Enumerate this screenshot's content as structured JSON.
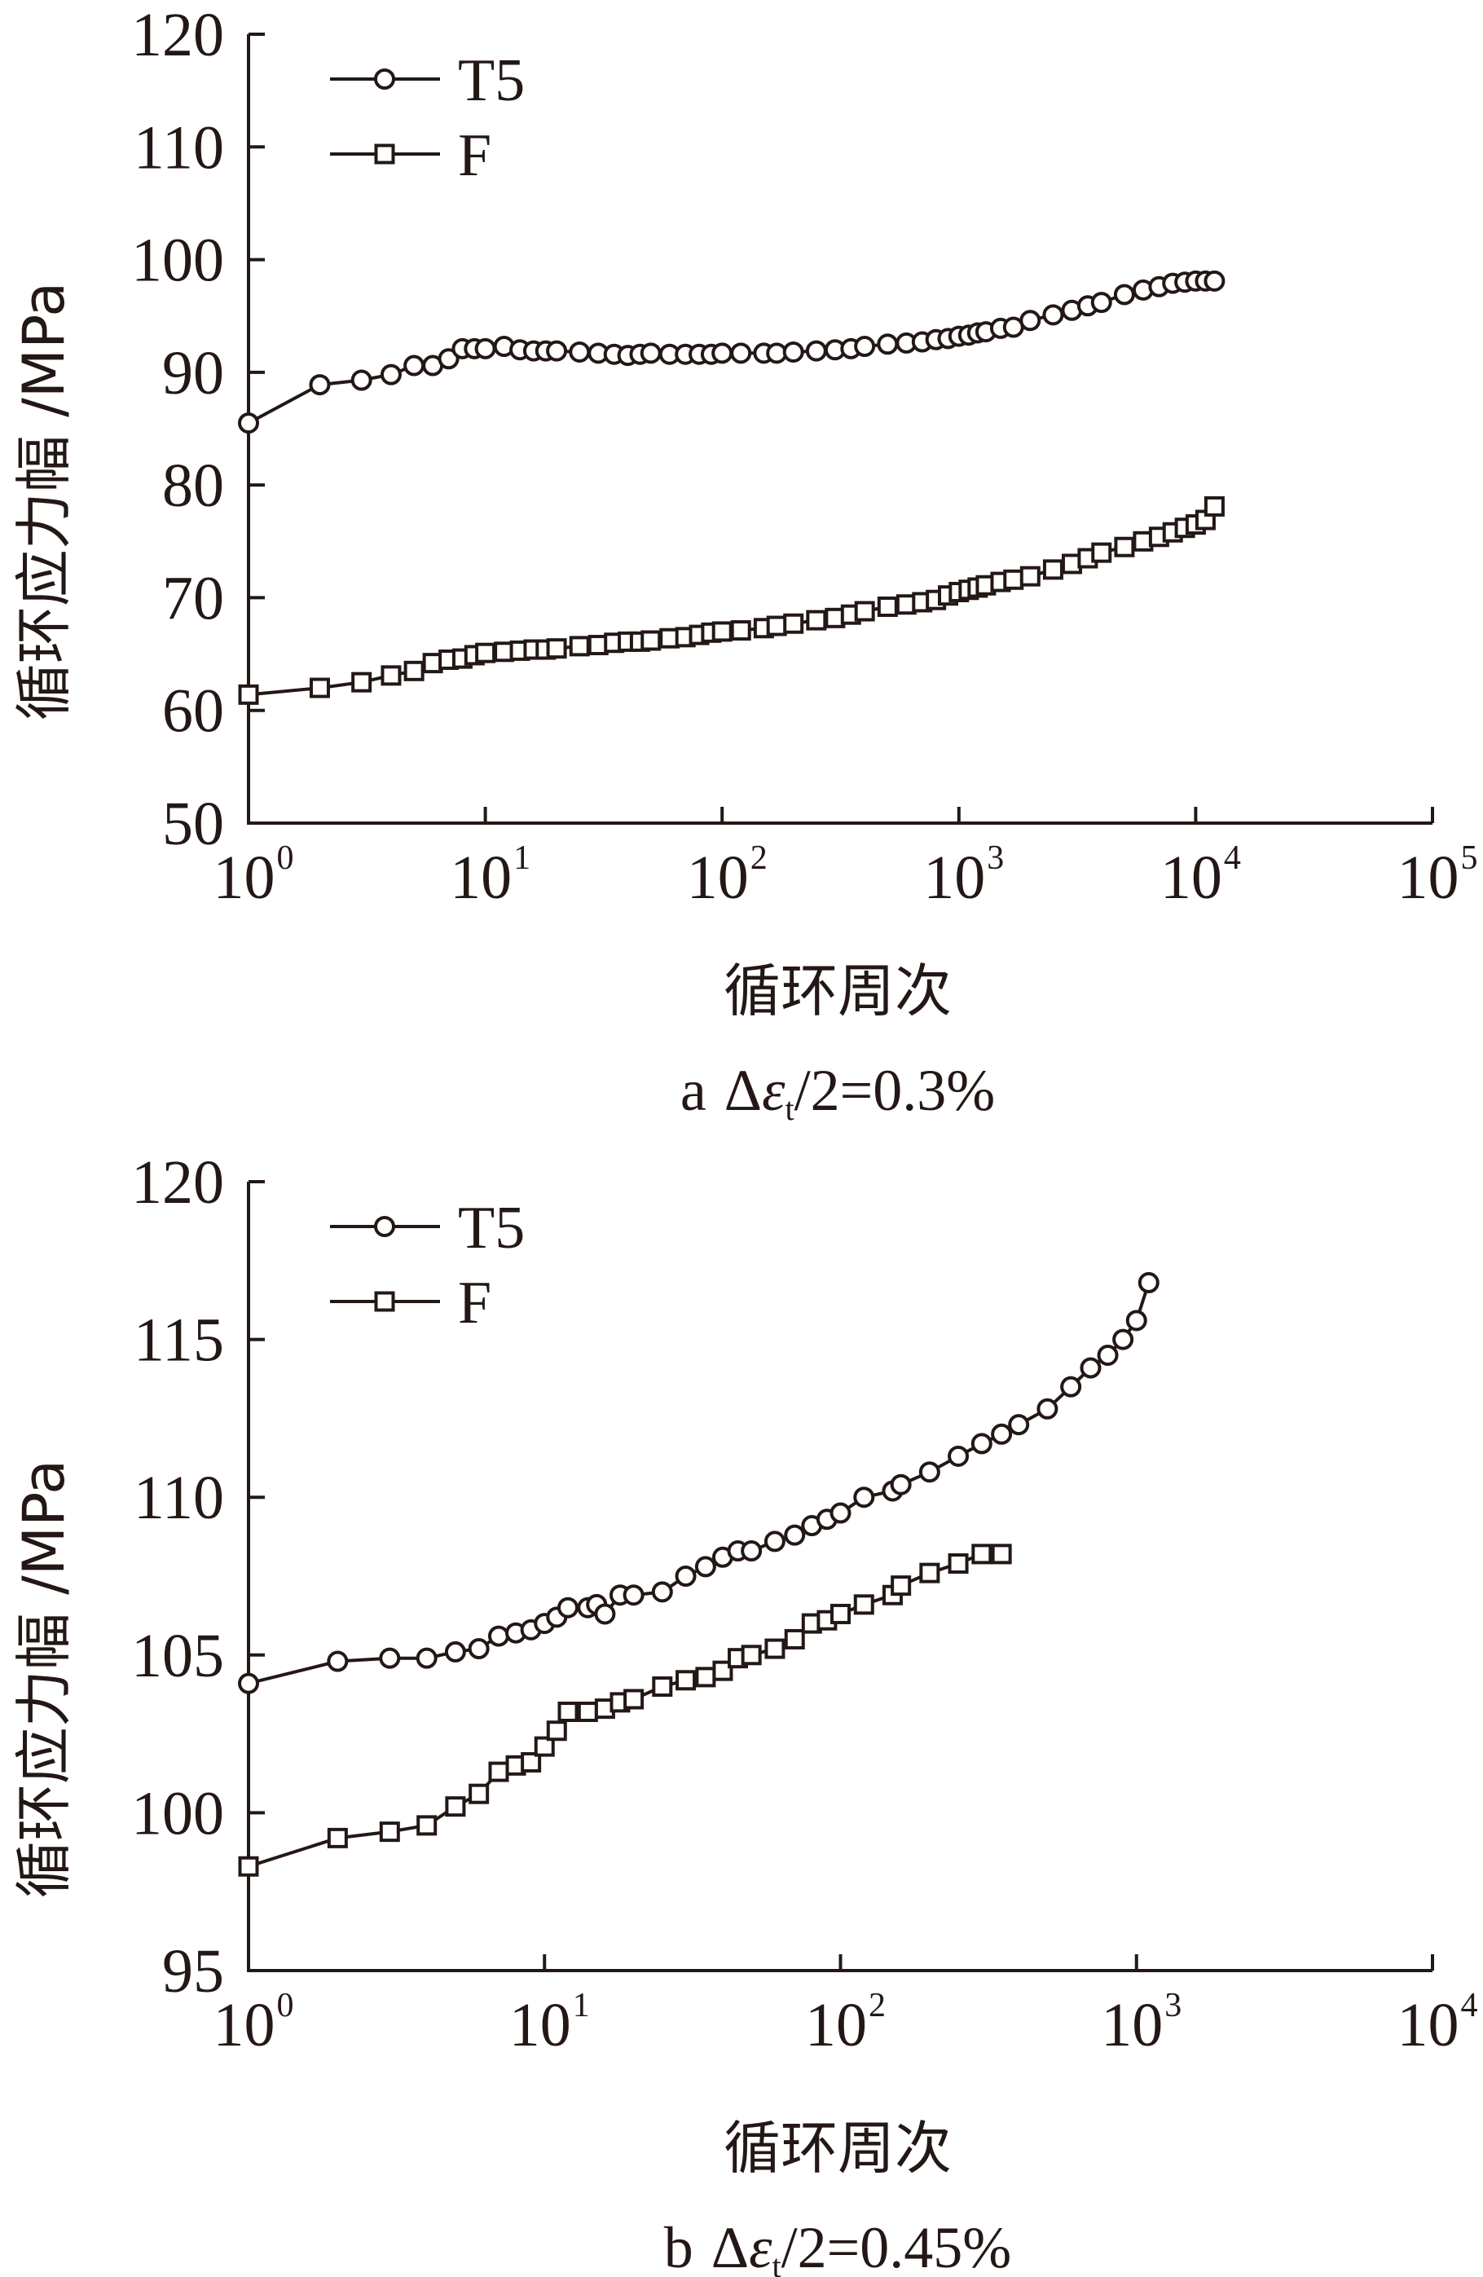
{
  "chart_data": [
    {
      "type": "line",
      "caption": {
        "prefix": "a",
        "delta": "Δ",
        "eps": "ε",
        "sub": "t",
        "rest": "/2=0.3%"
      },
      "xlabel": "循环周次",
      "ylabel": "循环应力幅 /MPa",
      "xscale": "log",
      "xlim": [
        1,
        100000
      ],
      "ylim": [
        50,
        120
      ],
      "yticks": [
        50,
        60,
        70,
        80,
        90,
        100,
        110,
        120
      ],
      "xticks": [
        {
          "base": "10",
          "exp": "0"
        },
        {
          "base": "10",
          "exp": "1"
        },
        {
          "base": "10",
          "exp": "2"
        },
        {
          "base": "10",
          "exp": "3"
        },
        {
          "base": "10",
          "exp": "4"
        },
        {
          "base": "10",
          "exp": "5"
        }
      ],
      "legend_position": "top-left",
      "series": [
        {
          "name": "T5",
          "marker": "circle",
          "x": [
            1,
            2,
            3,
            4,
            5,
            6,
            7,
            8,
            9,
            10,
            12,
            14,
            16,
            18,
            20,
            25,
            30,
            35,
            40,
            45,
            50,
            60,
            70,
            80,
            90,
            100,
            120,
            150,
            170,
            200,
            250,
            300,
            350,
            400,
            500,
            600,
            700,
            800,
            900,
            1000,
            1100,
            1200,
            1300,
            1500,
            1700,
            2000,
            2500,
            3000,
            3500,
            4000,
            5000,
            6000,
            7000,
            8000,
            9000,
            10000,
            11000,
            12000
          ],
          "y": [
            85.5,
            88.9,
            89.3,
            89.8,
            90.6,
            90.6,
            91.2,
            92.1,
            92.1,
            92.1,
            92.3,
            92.0,
            91.9,
            91.9,
            91.9,
            91.8,
            91.7,
            91.6,
            91.5,
            91.6,
            91.7,
            91.6,
            91.6,
            91.6,
            91.6,
            91.7,
            91.7,
            91.7,
            91.7,
            91.8,
            91.9,
            92.0,
            92.1,
            92.3,
            92.5,
            92.6,
            92.7,
            92.9,
            93.0,
            93.2,
            93.3,
            93.5,
            93.6,
            93.9,
            94.0,
            94.6,
            95.1,
            95.5,
            95.9,
            96.2,
            96.9,
            97.3,
            97.6,
            97.9,
            98.0,
            98.1,
            98.1,
            98.1
          ]
        },
        {
          "name": "F",
          "marker": "square",
          "x": [
            1,
            2,
            3,
            4,
            5,
            6,
            7,
            8,
            9,
            10,
            12,
            14,
            16,
            18,
            20,
            25,
            30,
            35,
            40,
            45,
            50,
            60,
            70,
            80,
            90,
            100,
            120,
            150,
            170,
            200,
            250,
            300,
            350,
            400,
            500,
            600,
            700,
            800,
            900,
            1000,
            1100,
            1200,
            1300,
            1500,
            1700,
            2000,
            2500,
            3000,
            3500,
            4000,
            5000,
            6000,
            7000,
            8000,
            9000,
            10000,
            11000,
            12000
          ],
          "y": [
            61.4,
            62.0,
            62.5,
            63.1,
            63.5,
            64.2,
            64.5,
            64.6,
            64.9,
            65.1,
            65.2,
            65.3,
            65.4,
            65.4,
            65.5,
            65.7,
            65.8,
            66.0,
            66.1,
            66.1,
            66.2,
            66.4,
            66.5,
            66.7,
            66.9,
            67.0,
            67.1,
            67.3,
            67.5,
            67.7,
            68.0,
            68.2,
            68.5,
            68.8,
            69.2,
            69.4,
            69.6,
            69.8,
            70.2,
            70.5,
            70.7,
            70.9,
            71.1,
            71.4,
            71.6,
            71.9,
            72.5,
            73.0,
            73.5,
            74.0,
            74.5,
            75.0,
            75.4,
            75.8,
            76.2,
            76.5,
            76.9,
            78.1
          ]
        }
      ]
    },
    {
      "type": "line",
      "caption": {
        "prefix": "b",
        "delta": "Δ",
        "eps": "ε",
        "sub": "t",
        "rest": "/2=0.45%"
      },
      "xlabel": "循环周次",
      "ylabel": "循环应力幅 /MPa",
      "xscale": "log",
      "xlim": [
        1,
        10000
      ],
      "ylim": [
        95,
        120
      ],
      "yticks": [
        95,
        100,
        105,
        110,
        115,
        120
      ],
      "xticks": [
        {
          "base": "10",
          "exp": "0"
        },
        {
          "base": "10",
          "exp": "1"
        },
        {
          "base": "10",
          "exp": "2"
        },
        {
          "base": "10",
          "exp": "3"
        },
        {
          "base": "10",
          "exp": "4"
        }
      ],
      "legend_position": "top-left",
      "series": [
        {
          "name": "T5",
          "marker": "circle",
          "x": [
            1,
            2,
            3,
            4,
            5,
            6,
            7,
            8,
            9,
            10,
            11,
            12,
            14,
            15,
            16,
            18,
            20,
            25,
            30,
            35,
            40,
            45,
            50,
            60,
            70,
            80,
            90,
            100,
            120,
            150,
            160,
            200,
            250,
            300,
            350,
            400,
            500,
            600,
            700,
            800,
            900,
            1000,
            1100
          ],
          "y": [
            104.1,
            104.8,
            104.9,
            104.9,
            105.1,
            105.2,
            105.6,
            105.7,
            105.8,
            106.0,
            106.2,
            106.5,
            106.5,
            106.6,
            106.3,
            106.9,
            106.9,
            107.0,
            107.5,
            107.8,
            108.1,
            108.3,
            108.3,
            108.6,
            108.8,
            109.1,
            109.3,
            109.5,
            110.0,
            110.2,
            110.4,
            110.8,
            111.3,
            111.7,
            112.0,
            112.3,
            112.8,
            113.5,
            114.1,
            114.5,
            115.0,
            115.6,
            116.8
          ]
        },
        {
          "name": "F",
          "marker": "square",
          "x": [
            1,
            2,
            3,
            4,
            5,
            6,
            7,
            8,
            9,
            10,
            11,
            12,
            14,
            16,
            18,
            20,
            25,
            30,
            35,
            40,
            45,
            50,
            60,
            70,
            80,
            90,
            100,
            120,
            150,
            160,
            200,
            250,
            300,
            350
          ],
          "y": [
            98.3,
            99.2,
            99.4,
            99.6,
            100.2,
            100.6,
            101.3,
            101.5,
            101.6,
            102.1,
            102.6,
            103.2,
            103.2,
            103.3,
            103.5,
            103.6,
            104.0,
            104.2,
            104.3,
            104.5,
            104.9,
            105.0,
            105.2,
            105.5,
            106.0,
            106.1,
            106.3,
            106.6,
            106.9,
            107.2,
            107.6,
            107.9,
            108.2,
            108.2
          ]
        }
      ]
    }
  ]
}
